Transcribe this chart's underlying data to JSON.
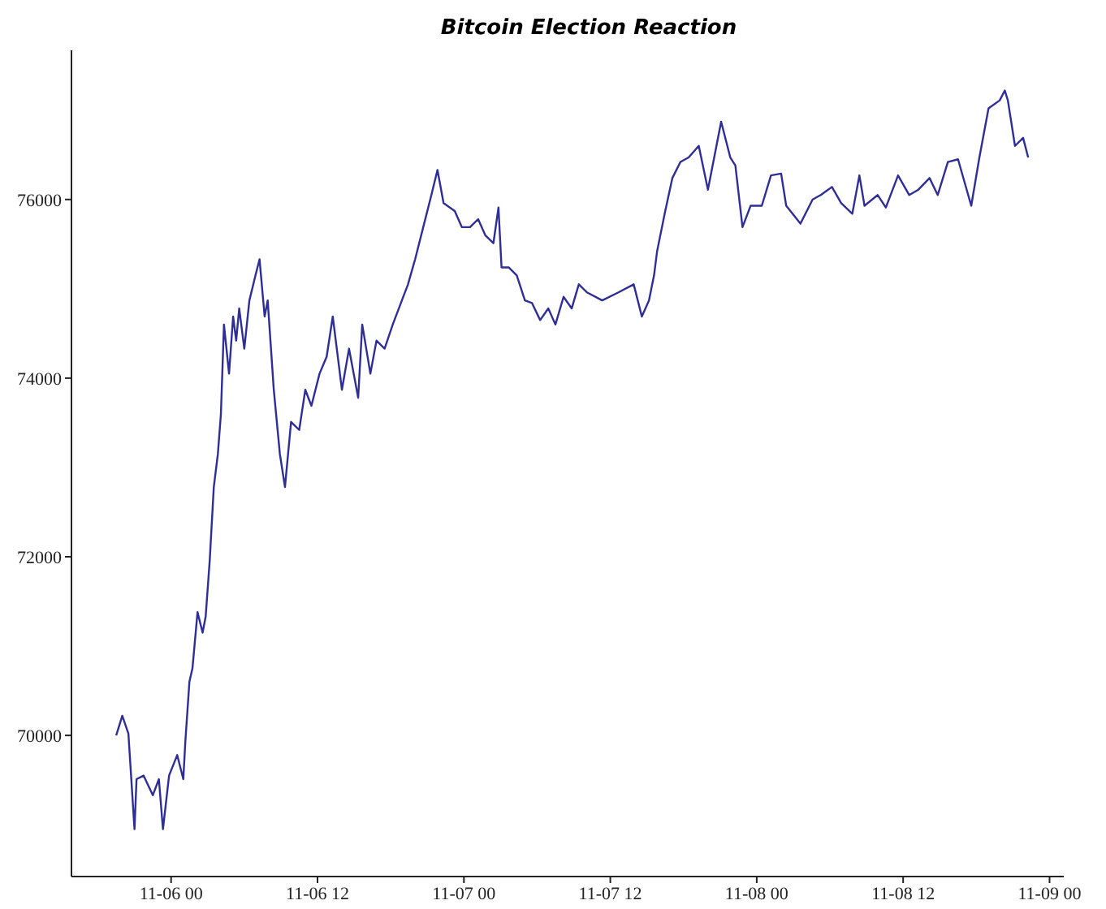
{
  "chart_data": {
    "type": "line",
    "title": "Bitcoin Election Reaction",
    "x": [
      "--11-05T19:30",
      "--11-05T20:00",
      "--11-05T20:30",
      "--11-05T21:00",
      "--11-05T21:10",
      "--11-05T21:45",
      "--11-05T22:30",
      "--11-05T23:00",
      "--11-05T23:20",
      "--11-05T23:50",
      "--11-06T00:30",
      "--11-06T01:00",
      "--11-06T01:10",
      "--11-06T01:30",
      "--11-06T01:45",
      "--11-06T02:10",
      "--11-06T02:35",
      "--11-06T02:50",
      "--11-06T03:10",
      "--11-06T03:30",
      "--11-06T03:50",
      "--11-06T04:05",
      "--11-06T04:20",
      "--11-06T04:45",
      "--11-06T05:05",
      "--11-06T05:20",
      "--11-06T05:35",
      "--11-06T06:00",
      "--11-06T06:25",
      "--11-06T06:55",
      "--11-06T07:15",
      "--11-06T07:40",
      "--11-06T07:55",
      "--11-06T08:25",
      "--11-06T08:55",
      "--11-06T09:20",
      "--11-06T09:50",
      "--11-06T10:30",
      "--11-06T11:00",
      "--11-06T11:30",
      "--11-06T12:10",
      "--11-06T12:45",
      "--11-06T13:15",
      "--11-06T14:00",
      "--11-06T14:35",
      "--11-06T15:20",
      "--11-06T15:40",
      "--11-06T16:20",
      "--11-06T16:50",
      "--11-06T17:30",
      "--11-06T18:10",
      "--11-06T18:55",
      "--11-06T19:25",
      "--11-06T20:00",
      "--11-06T20:40",
      "--11-06T21:20",
      "--11-06T21:50",
      "--11-06T22:20",
      "--11-06T23:15",
      "--11-06T23:50",
      "--11-07T00:30",
      "--11-07T01:10",
      "--11-07T01:45",
      "--11-07T02:25",
      "--11-07T02:50",
      "--11-07T03:05",
      "--11-07T03:40",
      "--11-07T04:20",
      "--11-07T05:00",
      "--11-07T05:35",
      "--11-07T06:15",
      "--11-07T06:55",
      "--11-07T07:30",
      "--11-07T08:10",
      "--11-07T08:50",
      "--11-07T09:25",
      "--11-07T10:05",
      "--11-07T11:20",
      "--11-07T12:40",
      "--11-07T13:55",
      "--11-07T14:35",
      "--11-07T15:10",
      "--11-07T15:35",
      "--11-07T15:50",
      "--11-07T16:30",
      "--11-07T17:05",
      "--11-07T17:45",
      "--11-07T18:25",
      "--11-07T19:15",
      "--11-07T20:00",
      "--11-07T21:05",
      "--11-07T21:50",
      "--11-07T22:15",
      "--11-07T22:50",
      "--11-07T23:30",
      "--11-08T00:25",
      "--11-08T01:10",
      "--11-08T02:00",
      "--11-08T02:25",
      "--11-08T03:35",
      "--11-08T04:35",
      "--11-08T05:15",
      "--11-08T06:10",
      "--11-08T06:55",
      "--11-08T07:50",
      "--11-08T08:25",
      "--11-08T08:50",
      "--11-08T09:55",
      "--11-08T10:35",
      "--11-08T11:35",
      "--11-08T12:30",
      "--11-08T13:15",
      "--11-08T14:10",
      "--11-08T14:50",
      "--11-08T15:40",
      "--11-08T16:30",
      "--11-08T17:35",
      "--11-08T18:15",
      "--11-08T19:00",
      "--11-08T19:55",
      "--11-08T20:20",
      "--11-08T20:35",
      "--11-08T21:10",
      "--11-08T21:50",
      "--11-08T22:15"
    ],
    "series": [
      {
        "color": "#2e2e96",
        "values": [
          70000,
          70220,
          70020,
          68950,
          69510,
          69550,
          69330,
          69510,
          68950,
          69550,
          69780,
          69510,
          69930,
          70600,
          70750,
          71380,
          71150,
          71330,
          71960,
          72780,
          73150,
          73600,
          74600,
          74050,
          74690,
          74420,
          74780,
          74330,
          74870,
          75150,
          75330,
          74690,
          74870,
          73870,
          73150,
          72780,
          73510,
          73420,
          73870,
          73690,
          74050,
          74240,
          74690,
          73870,
          74330,
          73780,
          74600,
          74050,
          74420,
          74330,
          74600,
          74870,
          75050,
          75330,
          75690,
          76050,
          76330,
          75960,
          75870,
          75690,
          75690,
          75780,
          75600,
          75510,
          75910,
          75240,
          75240,
          75150,
          74870,
          74840,
          74650,
          74780,
          74600,
          74910,
          74780,
          75050,
          74960,
          74870,
          74960,
          75050,
          74690,
          74870,
          75150,
          75420,
          75870,
          76240,
          76420,
          76470,
          76600,
          76110,
          76870,
          76470,
          76380,
          75690,
          75930,
          75930,
          76270,
          76290,
          75930,
          75730,
          76000,
          76050,
          76140,
          75960,
          75840,
          76270,
          75930,
          76050,
          75910,
          76270,
          76050,
          76110,
          76240,
          76050,
          76420,
          76450,
          75930,
          76470,
          77020,
          77110,
          77220,
          77110,
          76600,
          76690,
          76470
        ]
      }
    ],
    "xlim": [
      "--11-05T15:50",
      "--11-09T01:10"
    ],
    "xticks": [
      {
        "value": "--11-06T00:00",
        "label": "11-06 00"
      },
      {
        "value": "--11-06T12:00",
        "label": "11-06 12"
      },
      {
        "value": "--11-07T00:00",
        "label": "11-07 00"
      },
      {
        "value": "--11-07T12:00",
        "label": "11-07 12"
      },
      {
        "value": "--11-08T00:00",
        "label": "11-08 00"
      },
      {
        "value": "--11-08T12:00",
        "label": "11-08 12"
      },
      {
        "value": "--11-09T00:00",
        "label": "11-09 00"
      }
    ],
    "ylim": [
      68420,
      77670
    ],
    "yticks": [
      70000,
      72000,
      74000,
      76000
    ],
    "grid": false,
    "legend": false,
    "marker": "none",
    "line_style": "solid"
  }
}
